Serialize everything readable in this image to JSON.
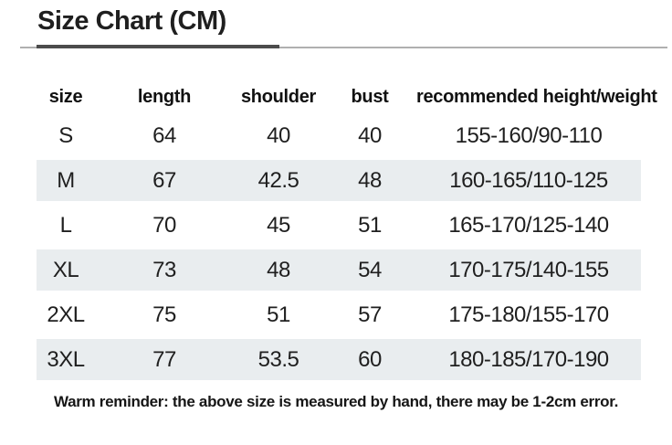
{
  "title": "Size Chart (CM)",
  "table": {
    "headers": [
      "size",
      "length",
      "shoulder",
      "bust",
      "recommended height/weight"
    ],
    "rows": [
      {
        "size": "S",
        "length": "64",
        "shoulder": "40",
        "bust": "40",
        "range": "155-160/90-110"
      },
      {
        "size": "M",
        "length": "67",
        "shoulder": "42.5",
        "bust": "48",
        "range": "160-165/110-125"
      },
      {
        "size": "L",
        "length": "70",
        "shoulder": "45",
        "bust": "51",
        "range": "165-170/125-140"
      },
      {
        "size": "XL",
        "length": "73",
        "shoulder": "48",
        "bust": "54",
        "range": "170-175/140-155"
      },
      {
        "size": "2XL",
        "length": "75",
        "shoulder": "51",
        "bust": "57",
        "range": "175-180/155-170"
      },
      {
        "size": "3XL",
        "length": "77",
        "shoulder": "53.5",
        "bust": "60",
        "range": "180-185/170-190"
      }
    ]
  },
  "footer": "Warm reminder: the above size is measured by hand, there may be 1-2cm error.",
  "colors": {
    "text": "#1f1f1f",
    "row_shade": "#e9edef",
    "line_dark": "#4c4c4c",
    "line_light": "#b0b0b0"
  }
}
